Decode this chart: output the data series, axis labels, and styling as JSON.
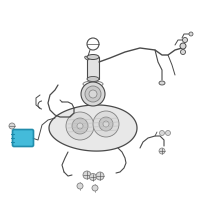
{
  "bg_color": "#ffffff",
  "line_color": "#808080",
  "dark_line": "#4a4a4a",
  "fill_light": "#e8e8e8",
  "fill_mid": "#d8d8d8",
  "highlight_color": "#3ab8d8",
  "highlight_edge": "#1a88a8",
  "figsize": [
    2.0,
    2.0
  ],
  "dpi": 100
}
